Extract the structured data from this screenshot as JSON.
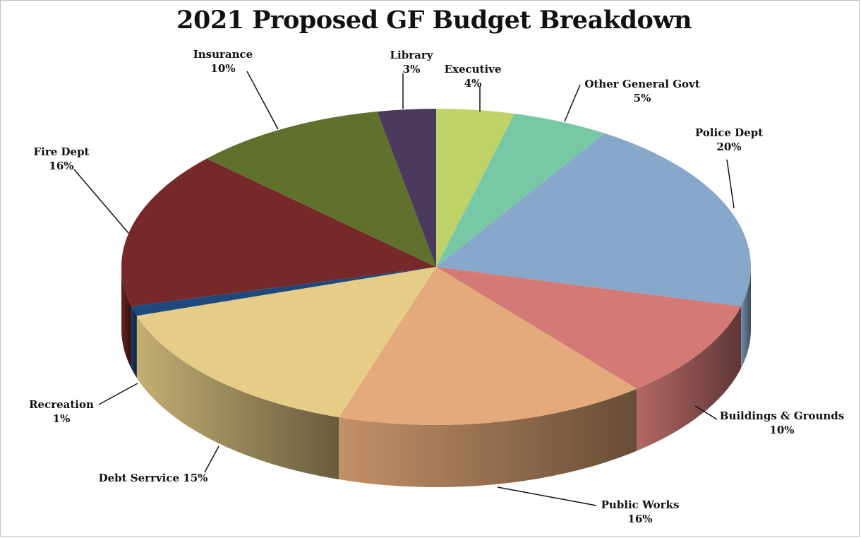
{
  "chart_data": {
    "type": "pie",
    "title": "2021 Proposed GF Budget Breakdown",
    "slices": [
      {
        "label": "Executive",
        "pct_label": "4%",
        "value": 4,
        "color": "#BFD267"
      },
      {
        "label": "Other General Govt",
        "pct_label": "5%",
        "value": 5,
        "color": "#79C8A5"
      },
      {
        "label": "Police Dept",
        "pct_label": "20%",
        "value": 20,
        "color": "#87A7CB"
      },
      {
        "label": "Buildings & Grounds",
        "pct_label": "10%",
        "value": 10,
        "color": "#D37A77"
      },
      {
        "label": "Public Works",
        "pct_label": "16%",
        "value": 16,
        "color": "#E5AA7B"
      },
      {
        "label": "Debt Serrvice",
        "pct_label": "15%",
        "value": 15,
        "color": "#E6CD87"
      },
      {
        "label": "Recreation",
        "pct_label": "1%",
        "value": 1,
        "color": "#1F497D"
      },
      {
        "label": "Fire Dept",
        "pct_label": "16%",
        "value": 16,
        "color": "#772828"
      },
      {
        "label": "Insurance",
        "pct_label": "10%",
        "value": 10,
        "color": "#5F712C"
      },
      {
        "label": "Library",
        "pct_label": "3%",
        "value": 3,
        "color": "#4B3A5E"
      }
    ],
    "style": "3d-pie"
  }
}
